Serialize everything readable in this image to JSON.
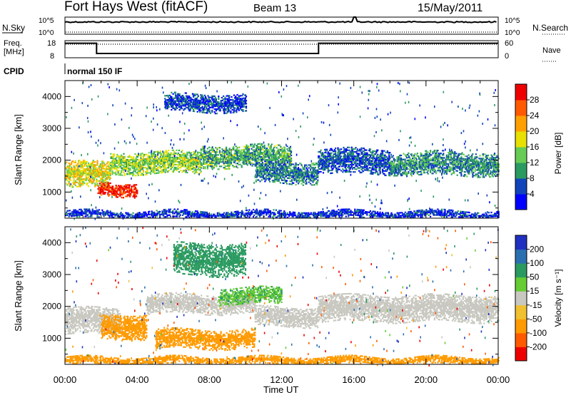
{
  "header": {
    "title": "Fort Hays West (fitACF)",
    "beam": "Beam 13",
    "date": "15/May/2011"
  },
  "top_panels": {
    "nsky_label": "N.Sky",
    "nsearch_label": "N.Search",
    "nsky_ticks": [
      "10^5",
      "10^0"
    ],
    "nsearch_ticks": [
      "10^5",
      "10^0"
    ],
    "freq_label_line1": "Freq.",
    "freq_label_line2": "[MHz]",
    "freq_ticks": [
      "18",
      "8"
    ],
    "nave_label": "Nave",
    "nave_ticks": [
      "60",
      "0"
    ],
    "cpid_label": "CPID",
    "cpid_value": "normal 150 IF",
    "freq_steps": [
      {
        "from": 0,
        "to": 1.75,
        "mhz": 16.5
      },
      {
        "from": 1.75,
        "to": 14.05,
        "mhz": 10.5
      },
      {
        "from": 14.05,
        "to": 24,
        "mhz": 16.5
      }
    ]
  },
  "chart_data": [
    {
      "type": "heatmap",
      "name": "Power",
      "ylabel": "Slant Range [km]",
      "xlabel": "Time UT",
      "xlim": [
        0,
        24
      ],
      "ylim": [
        180,
        4500
      ],
      "x_ticks": [
        "00:00",
        "04:00",
        "08:00",
        "12:00",
        "16:00",
        "20:00",
        "00:00"
      ],
      "x_tick_hours": [
        0,
        4,
        8,
        12,
        16,
        20,
        24
      ],
      "y_ticks": [
        1000,
        2000,
        3000,
        4000
      ],
      "colorbar": {
        "label": "Power [dB]",
        "ticks": [
          4,
          8,
          12,
          16,
          20,
          24,
          28
        ],
        "range": [
          0,
          30
        ],
        "colors": [
          "#0000ff",
          "#1144bb",
          "#2a9a60",
          "#66cc55",
          "#e8e000",
          "#ffa000",
          "#ff5a00",
          "#ee0000"
        ]
      },
      "bands": [
        {
          "t0": 0.0,
          "t1": 2.5,
          "r0": 1150,
          "r1": 2000,
          "p": 17
        },
        {
          "t0": 1.8,
          "t1": 4.0,
          "r0": 900,
          "r1": 1350,
          "p": 27
        },
        {
          "t0": 2.5,
          "t1": 7.5,
          "r0": 1600,
          "r1": 2300,
          "p": 14
        },
        {
          "t0": 7.5,
          "t1": 12.5,
          "r0": 1800,
          "r1": 2500,
          "p": 11
        },
        {
          "t0": 10.5,
          "t1": 14.0,
          "r0": 1300,
          "r1": 2000,
          "p": 8
        },
        {
          "t0": 14.0,
          "t1": 18.0,
          "r0": 1600,
          "r1": 2400,
          "p": 6
        },
        {
          "t0": 18.0,
          "t1": 24.0,
          "r0": 1550,
          "r1": 2300,
          "p": 9
        },
        {
          "t0": 5.5,
          "t1": 10.0,
          "r0": 3550,
          "r1": 4100,
          "p": 5
        },
        {
          "t0": 0.0,
          "t1": 24.0,
          "r0": 200,
          "r1": 450,
          "p": 4
        }
      ]
    },
    {
      "type": "heatmap",
      "name": "Velocity",
      "ylabel": "Slant Range [km]",
      "xlabel": "Time UT",
      "xlim": [
        0,
        24
      ],
      "ylim": [
        180,
        4500
      ],
      "x_ticks": [
        "00:00",
        "04:00",
        "08:00",
        "12:00",
        "16:00",
        "20:00",
        "00:00"
      ],
      "x_tick_hours": [
        0,
        4,
        8,
        12,
        16,
        20,
        24
      ],
      "y_ticks": [
        1000,
        2000,
        3000,
        4000
      ],
      "colorbar": {
        "label": "Velocity [m s⁻¹]",
        "ticks": [
          "200",
          "100",
          "50",
          "15",
          "-15",
          "-50",
          "-100",
          "-200"
        ],
        "colors": [
          "#2030c0",
          "#2a70b0",
          "#2a9a60",
          "#66cc33",
          "#c8c8c0",
          "#f0c030",
          "#ff9a00",
          "#ff5a00",
          "#ee0000"
        ]
      },
      "bands": [
        {
          "t0": 0.0,
          "t1": 3.0,
          "r0": 1150,
          "r1": 2000,
          "v": -5
        },
        {
          "t0": 2.0,
          "t1": 4.5,
          "r0": 1000,
          "r1": 1800,
          "v": -60
        },
        {
          "t0": 4.5,
          "t1": 10.5,
          "r0": 1800,
          "r1": 2400,
          "v": 5
        },
        {
          "t0": 8.5,
          "t1": 12.0,
          "r0": 2100,
          "r1": 2600,
          "v": 30
        },
        {
          "t0": 10.5,
          "t1": 14.0,
          "r0": 1400,
          "r1": 2000,
          "v": -5
        },
        {
          "t0": 14.0,
          "t1": 24.0,
          "r0": 1550,
          "r1": 2400,
          "v": 0
        },
        {
          "t0": 6.0,
          "t1": 10.0,
          "r0": 3000,
          "r1": 4000,
          "v": 40
        },
        {
          "t0": 5.0,
          "t1": 10.5,
          "r0": 700,
          "r1": 1300,
          "v": -40
        },
        {
          "t0": 0.0,
          "t1": 24.0,
          "r0": 200,
          "r1": 450,
          "v": -40
        }
      ]
    }
  ]
}
